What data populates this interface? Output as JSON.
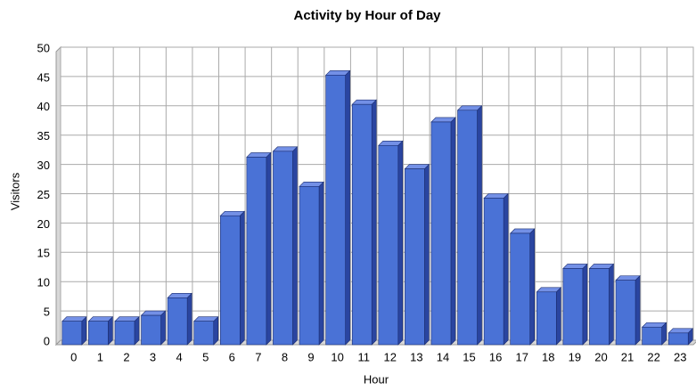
{
  "chart_data": {
    "type": "bar",
    "title": "Activity by Hour of Day",
    "x_label": "Hour",
    "y_label": "Visitors",
    "categories": [
      "0",
      "1",
      "2",
      "3",
      "4",
      "5",
      "6",
      "7",
      "8",
      "9",
      "10",
      "11",
      "12",
      "13",
      "14",
      "15",
      "16",
      "17",
      "18",
      "19",
      "20",
      "21",
      "22",
      "23"
    ],
    "values": [
      4,
      4,
      4,
      5,
      8,
      4,
      22,
      32,
      33,
      27,
      46,
      41,
      34,
      30,
      38,
      40,
      25,
      19,
      9,
      13,
      13,
      11,
      3,
      2
    ],
    "color": "#4a72d6",
    "ylim": [
      0,
      50
    ],
    "yticks": [
      0,
      5,
      10,
      15,
      20,
      25,
      30,
      35,
      40,
      45,
      50
    ],
    "grid": true
  }
}
